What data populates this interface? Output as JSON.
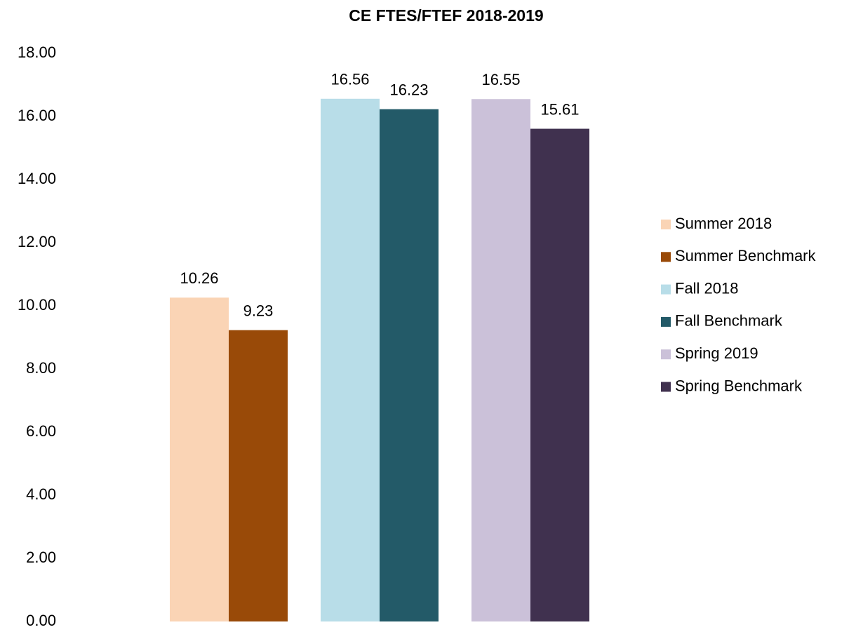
{
  "chart_data": {
    "type": "bar",
    "title": "CE FTES/FTEF 2018-2019",
    "series": [
      {
        "name": "Summer 2018",
        "color": "#fad4b5",
        "values": [
          10.26
        ]
      },
      {
        "name": "Summer Benchmark",
        "color": "#994a08",
        "values": [
          9.23
        ]
      },
      {
        "name": "Fall 2018",
        "color": "#b8dde8",
        "values": [
          16.56
        ]
      },
      {
        "name": "Fall Benchmark",
        "color": "#235a68",
        "values": [
          16.23
        ]
      },
      {
        "name": "Spring 2019",
        "color": "#cbc1d9",
        "values": [
          16.55
        ]
      },
      {
        "name": "Spring Benchmark",
        "color": "#40314f",
        "values": [
          15.61
        ]
      }
    ],
    "ylim": [
      0,
      18
    ],
    "yticks": [
      {
        "value": 0,
        "label": "0.00"
      },
      {
        "value": 2,
        "label": "2.00"
      },
      {
        "value": 4,
        "label": "4.00"
      },
      {
        "value": 6,
        "label": "6.00"
      },
      {
        "value": 8,
        "label": "8.00"
      },
      {
        "value": 10,
        "label": "10.00"
      },
      {
        "value": 12,
        "label": "12.00"
      },
      {
        "value": 14,
        "label": "14.00"
      },
      {
        "value": 16,
        "label": "16.00"
      },
      {
        "value": 18,
        "label": "18.00"
      }
    ],
    "grid": false,
    "legend": "right"
  }
}
